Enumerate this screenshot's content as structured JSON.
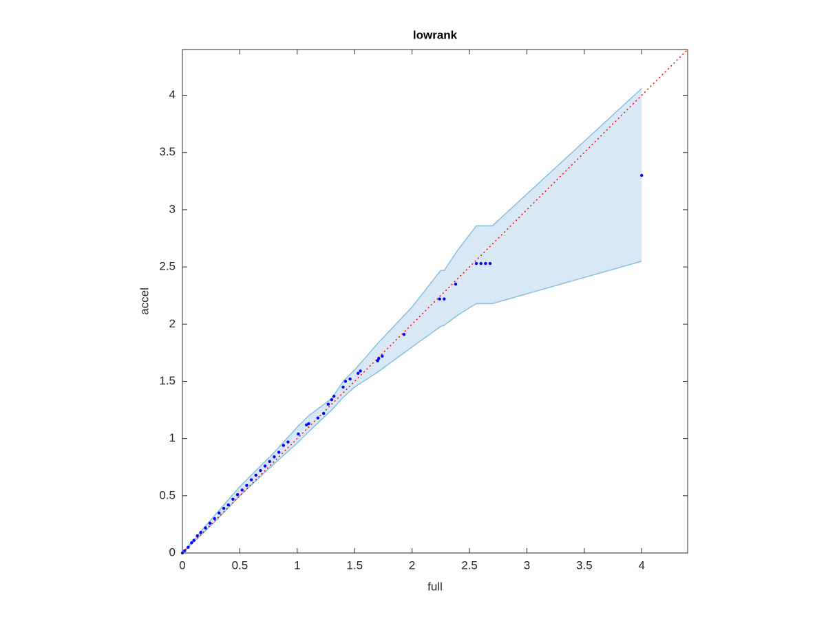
{
  "chart_data": {
    "type": "scatter",
    "title": "lowrank",
    "xlabel": "full",
    "ylabel": "accel",
    "xlim": [
      0,
      4.4
    ],
    "ylim": [
      0,
      4.4
    ],
    "xticks": [
      0,
      0.5,
      1,
      1.5,
      2,
      2.5,
      3,
      3.5,
      4
    ],
    "yticks": [
      0,
      0.5,
      1,
      1.5,
      2,
      2.5,
      3,
      3.5,
      4
    ],
    "box": true,
    "series": [
      {
        "type": "band",
        "color": "#86bfe0",
        "fill": "#d8e8f4",
        "x": [
          0,
          0.3,
          0.5,
          0.8,
          1.0,
          1.1,
          1.3,
          1.4,
          1.5,
          1.7,
          2.0,
          2.25,
          2.28,
          2.4,
          2.56,
          2.7,
          4.0
        ],
        "upper": [
          0,
          0.35,
          0.58,
          0.88,
          1.1,
          1.2,
          1.35,
          1.5,
          1.6,
          1.83,
          2.15,
          2.47,
          2.47,
          2.65,
          2.86,
          2.86,
          4.06
        ],
        "lower": [
          0,
          0.29,
          0.5,
          0.78,
          0.96,
          1.06,
          1.25,
          1.36,
          1.45,
          1.58,
          1.8,
          1.98,
          1.99,
          2.08,
          2.18,
          2.18,
          2.55
        ]
      },
      {
        "type": "line",
        "style": "dotted",
        "color": "#ff0000",
        "x": [
          0,
          4.4
        ],
        "values": [
          0,
          4.4
        ]
      },
      {
        "type": "scatter",
        "color": "#0000ff",
        "x": [
          0.0,
          0.02,
          0.05,
          0.08,
          0.1,
          0.13,
          0.16,
          0.2,
          0.24,
          0.28,
          0.32,
          0.36,
          0.4,
          0.44,
          0.48,
          0.52,
          0.56,
          0.6,
          0.64,
          0.68,
          0.72,
          0.76,
          0.8,
          0.84,
          0.88,
          0.92,
          1.01,
          1.08,
          1.1,
          1.18,
          1.23,
          1.27,
          1.3,
          1.32,
          1.4,
          1.42,
          1.46,
          1.53,
          1.55,
          1.7,
          1.71,
          1.74,
          1.93,
          2.24,
          2.28,
          2.38,
          2.56,
          2.6,
          2.64,
          2.68,
          4.0
        ],
        "values": [
          0.0,
          0.02,
          0.05,
          0.09,
          0.11,
          0.15,
          0.18,
          0.22,
          0.26,
          0.3,
          0.35,
          0.39,
          0.42,
          0.47,
          0.51,
          0.55,
          0.59,
          0.64,
          0.68,
          0.72,
          0.76,
          0.8,
          0.84,
          0.88,
          0.94,
          0.97,
          1.04,
          1.12,
          1.13,
          1.18,
          1.22,
          1.3,
          1.34,
          1.37,
          1.45,
          1.5,
          1.52,
          1.57,
          1.59,
          1.68,
          1.7,
          1.72,
          1.91,
          2.22,
          2.22,
          2.35,
          2.53,
          2.53,
          2.53,
          2.53,
          3.3
        ]
      }
    ]
  }
}
